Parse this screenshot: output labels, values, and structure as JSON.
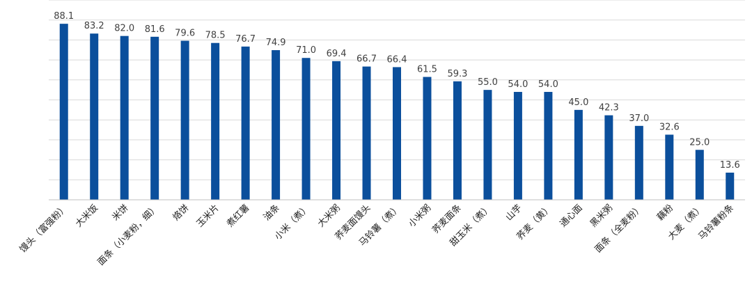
{
  "chart_data": {
    "type": "bar",
    "categories": [
      "馒头（富强粉）",
      "大米饭",
      "米饼",
      "面条（小麦粉，细）",
      "烙饼",
      "玉米片",
      "煮红薯",
      "油条",
      "小米（煮）",
      "大米粥",
      "荞麦面馒头",
      "马铃薯（煮）",
      "小米粥",
      "荞麦面条",
      "甜玉米（煮）",
      "山芋",
      "荞麦（黄）",
      "通心面",
      "黑米粥",
      "面条（全麦粉）",
      "藕粉",
      "大麦（煮）",
      "马铃薯粉条"
    ],
    "values": [
      88.1,
      83.2,
      82.0,
      81.6,
      79.6,
      78.5,
      76.7,
      74.9,
      71.0,
      69.4,
      66.7,
      66.4,
      61.5,
      59.3,
      55.0,
      54.0,
      54.0,
      45.0,
      42.3,
      37.0,
      32.6,
      25.0,
      13.6
    ],
    "value_labels": [
      "88.1",
      "83.2",
      "82.0",
      "81.6",
      "79.6",
      "78.5",
      "76.7",
      "74.9",
      "71.0",
      "69.4",
      "66.7",
      "66.4",
      "61.5",
      "59.3",
      "55.0",
      "54.0",
      "54.0",
      "45.0",
      "42.3",
      "37.0",
      "32.6",
      "25.0",
      "13.6"
    ],
    "title": "",
    "xlabel": "",
    "ylabel": "",
    "ylim": [
      0,
      100
    ],
    "grid": true,
    "bar_color": "#0b4f9c"
  }
}
